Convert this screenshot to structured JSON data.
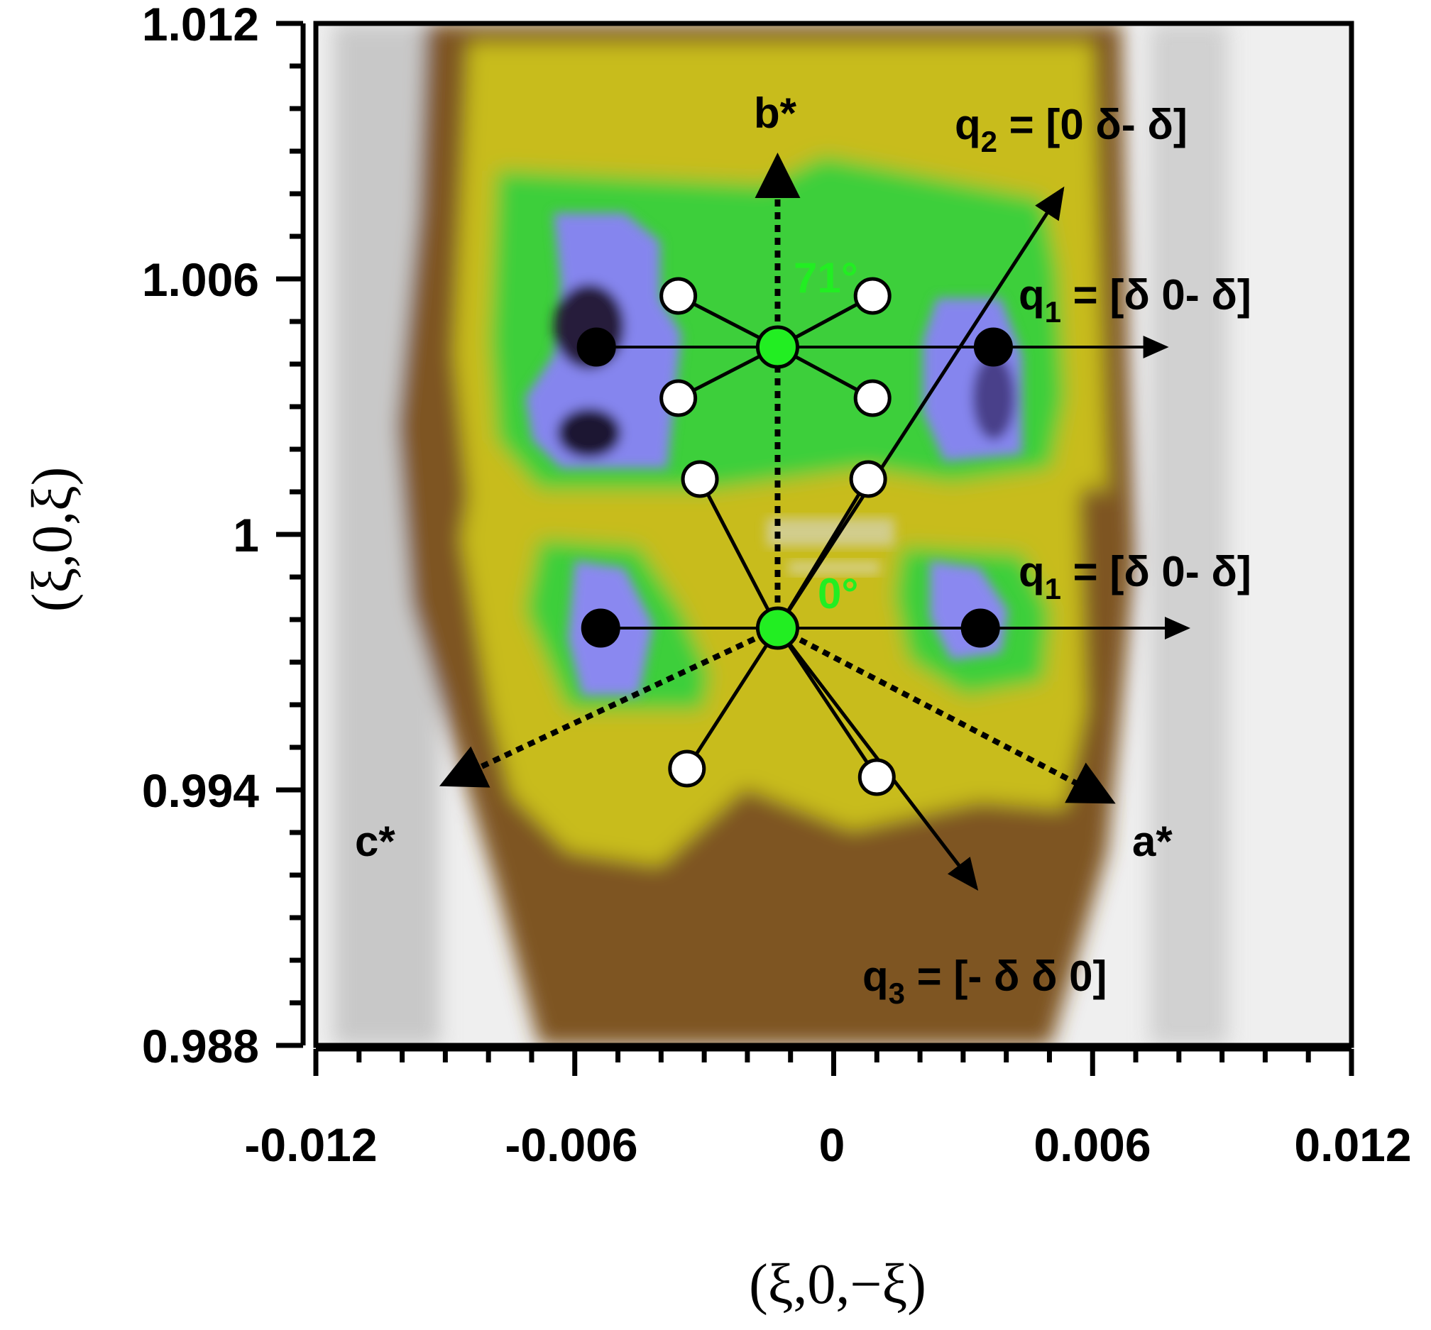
{
  "chart_data": {
    "type": "heatmap",
    "title": "",
    "xlabel": "(ξ,0,−ξ)",
    "ylabel": "(ξ,0,ξ)",
    "xlim": [
      -0.012,
      0.012
    ],
    "ylim": [
      0.988,
      1.012
    ],
    "x_ticks": [
      "-0.012",
      "-0.006",
      "0",
      "0.006",
      "0.012"
    ],
    "y_ticks": [
      "1.012",
      "1.006",
      "1",
      "0.994",
      "0.988"
    ],
    "x_tick_values": [
      -0.012,
      -0.006,
      0,
      0.006,
      0.012
    ],
    "y_tick_values": [
      1.012,
      1.006,
      1.0,
      0.994,
      0.988
    ],
    "colormap": [
      "#f2f2f2",
      "#8a5a2a",
      "#c8c000",
      "#33cc33",
      "#8080ee",
      "#1a1030"
    ],
    "centers": [
      {
        "name": "upper",
        "x": -0.0013,
        "y": 1.0044,
        "angle_label": "71°"
      },
      {
        "name": "lower",
        "x": -0.0013,
        "y": 0.9978,
        "angle_label": "0°"
      }
    ],
    "black_points": [
      {
        "x": -0.0055,
        "y": 1.0044
      },
      {
        "x": 0.0037,
        "y": 1.0044
      },
      {
        "x": -0.0054,
        "y": 0.9978
      },
      {
        "x": 0.0034,
        "y": 0.9978
      }
    ],
    "white_points": [
      {
        "x": -0.0036,
        "y": 1.0056
      },
      {
        "x": 0.0009,
        "y": 1.0056
      },
      {
        "x": -0.0036,
        "y": 1.0032
      },
      {
        "x": 0.0009,
        "y": 1.0032
      },
      {
        "x": -0.0031,
        "y": 1.0013
      },
      {
        "x": 0.0008,
        "y": 1.0013
      },
      {
        "x": -0.0034,
        "y": 0.9945
      },
      {
        "x": 0.001,
        "y": 0.9943
      }
    ],
    "vectors": [
      {
        "id": "b-star",
        "label": "b*",
        "style": "dotted",
        "from": [
          -0.0013,
          0.9978
        ],
        "to": [
          -0.0013,
          1.0087
        ]
      },
      {
        "id": "a-star",
        "label": "a*",
        "style": "dotted",
        "from": [
          -0.0013,
          0.9978
        ],
        "to": [
          0.0063,
          0.9938
        ]
      },
      {
        "id": "c-star",
        "label": "c*",
        "style": "dotted",
        "from": [
          -0.0013,
          0.9978
        ],
        "to": [
          -0.0089,
          0.9942
        ]
      },
      {
        "id": "q2",
        "style": "solid",
        "from": [
          -0.0013,
          0.9978
        ],
        "to": [
          0.0053,
          1.0081
        ]
      },
      {
        "id": "q3",
        "style": "solid",
        "from": [
          -0.0013,
          0.9978
        ],
        "to": [
          0.0033,
          0.9917
        ]
      },
      {
        "id": "q1-upper",
        "style": "solid",
        "from": [
          -0.0055,
          1.0044
        ],
        "to": [
          0.0077,
          1.0044
        ]
      },
      {
        "id": "q1-lower",
        "style": "solid",
        "from": [
          -0.0054,
          0.9978
        ],
        "to": [
          0.0082,
          0.9978
        ]
      }
    ],
    "annotations": {
      "b_star": "b*",
      "a_star": "a*",
      "c_star": "c*",
      "q2": {
        "prefix": "q",
        "sub": "2",
        "text": " = [0 δ- δ]"
      },
      "q1_upper": {
        "prefix": "q",
        "sub": "1",
        "text": " = [δ 0- δ]"
      },
      "q1_lower": {
        "prefix": "q",
        "sub": "1",
        "text": " = [δ 0- δ]"
      },
      "q3": {
        "prefix": "q",
        "sub": "3",
        "text": " = [- δ δ 0]"
      },
      "angle_upper": "71°",
      "angle_lower": "0°"
    }
  }
}
